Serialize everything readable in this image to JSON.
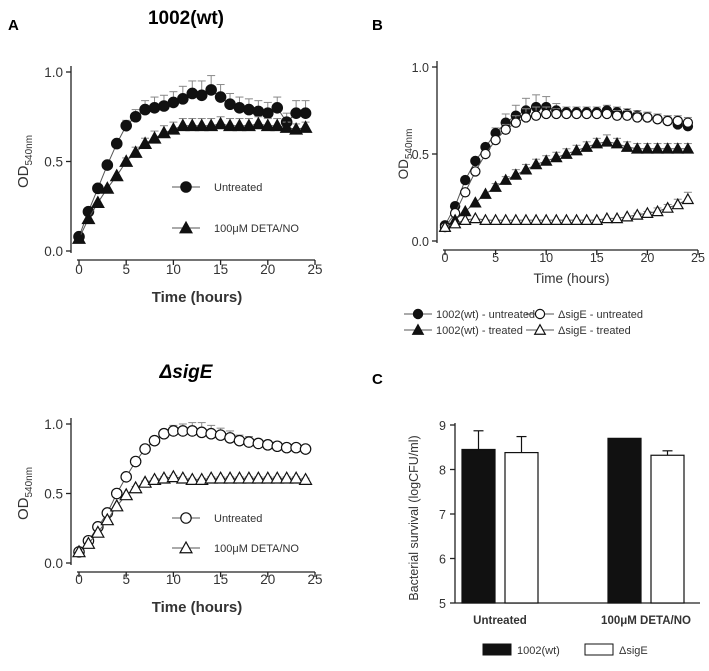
{
  "panels": {
    "A_label": "A",
    "B_label": "B",
    "C_label": "C",
    "A_top_title": "1002(wt)",
    "A_bottom_title": "ΔsigE"
  },
  "chart_data": [
    {
      "id": "A-top",
      "type": "line",
      "title": "1002(wt)",
      "xlabel": "Time (hours)",
      "ylabel": "OD540nm",
      "ylabel_main": "OD",
      "ylabel_sub": "540nm",
      "xlim": [
        0,
        25
      ],
      "ylim": [
        0,
        1.0
      ],
      "xticks": [
        0,
        5,
        10,
        15,
        20,
        25
      ],
      "xtick_labels": [
        "0",
        "5",
        "10",
        "15",
        "20",
        "25"
      ],
      "yticks": [
        0,
        0.5,
        1.0
      ],
      "ytick_labels": [
        "0.0",
        "0.5",
        "1.0"
      ],
      "legend": [
        "Untreated",
        "100μM DETA/NO"
      ],
      "series": [
        {
          "name": "Untreated",
          "marker": "circle",
          "filled": true,
          "x": [
            0,
            1,
            2,
            3,
            4,
            5,
            6,
            7,
            8,
            9,
            10,
            11,
            12,
            13,
            14,
            15,
            16,
            17,
            18,
            19,
            20,
            21,
            22,
            23,
            24
          ],
          "y": [
            0.08,
            0.22,
            0.35,
            0.48,
            0.6,
            0.7,
            0.75,
            0.79,
            0.8,
            0.81,
            0.83,
            0.85,
            0.88,
            0.87,
            0.9,
            0.86,
            0.82,
            0.8,
            0.79,
            0.78,
            0.77,
            0.8,
            0.72,
            0.77,
            0.77
          ],
          "err": [
            0,
            0,
            0,
            0,
            0,
            0.03,
            0.04,
            0.05,
            0.06,
            0.06,
            0.06,
            0.07,
            0.07,
            0.08,
            0.08,
            0.07,
            0.06,
            0.06,
            0.06,
            0.06,
            0.06,
            0.06,
            0.05,
            0.07,
            0.07
          ]
        },
        {
          "name": "100μM DETA/NO",
          "marker": "triangle",
          "filled": true,
          "x": [
            0,
            1,
            2,
            3,
            4,
            5,
            6,
            7,
            8,
            9,
            10,
            11,
            12,
            13,
            14,
            15,
            16,
            17,
            18,
            19,
            20,
            21,
            22,
            23,
            24
          ],
          "y": [
            0.07,
            0.18,
            0.27,
            0.35,
            0.42,
            0.5,
            0.55,
            0.6,
            0.63,
            0.66,
            0.68,
            0.7,
            0.7,
            0.7,
            0.7,
            0.71,
            0.7,
            0.7,
            0.7,
            0.71,
            0.7,
            0.7,
            0.69,
            0.68,
            0.69
          ],
          "err": [
            0,
            0,
            0,
            0,
            0,
            0.02,
            0.03,
            0.03,
            0.04,
            0.04,
            0.04,
            0.04,
            0.04,
            0.04,
            0.04,
            0.04,
            0.04,
            0.04,
            0.04,
            0.04,
            0.04,
            0.04,
            0.03,
            0.03,
            0.03
          ]
        }
      ]
    },
    {
      "id": "A-bottom",
      "type": "line",
      "title": "ΔsigE",
      "xlabel": "Time (hours)",
      "ylabel": "OD540nm",
      "ylabel_main": "OD",
      "ylabel_sub": "540nm",
      "xlim": [
        0,
        25
      ],
      "ylim": [
        0,
        1.0
      ],
      "xticks": [
        0,
        5,
        10,
        15,
        20,
        25
      ],
      "xtick_labels": [
        "0",
        "5",
        "10",
        "15",
        "20",
        "25"
      ],
      "yticks": [
        0,
        0.5,
        1.0
      ],
      "ytick_labels": [
        "0.0",
        "0.5",
        "1.0"
      ],
      "legend": [
        "Untreated",
        "100μM DETA/NO"
      ],
      "series": [
        {
          "name": "Untreated",
          "marker": "circle",
          "filled": false,
          "x": [
            0,
            1,
            2,
            3,
            4,
            5,
            6,
            7,
            8,
            9,
            10,
            11,
            12,
            13,
            14,
            15,
            16,
            17,
            18,
            19,
            20,
            21,
            22,
            23,
            24
          ],
          "y": [
            0.08,
            0.16,
            0.26,
            0.36,
            0.5,
            0.62,
            0.73,
            0.82,
            0.88,
            0.93,
            0.95,
            0.95,
            0.95,
            0.94,
            0.93,
            0.92,
            0.9,
            0.88,
            0.87,
            0.86,
            0.85,
            0.84,
            0.83,
            0.83,
            0.82
          ],
          "err": [
            0,
            0,
            0,
            0,
            0,
            0,
            0.02,
            0.02,
            0.03,
            0.03,
            0.04,
            0.05,
            0.06,
            0.07,
            0.06,
            0.05,
            0.05,
            0.04,
            0.04,
            0.03,
            0.03,
            0.03,
            0.02,
            0.02,
            0.02
          ]
        },
        {
          "name": "100μM DETA/NO",
          "marker": "triangle",
          "filled": false,
          "x": [
            0,
            1,
            2,
            3,
            4,
            5,
            6,
            7,
            8,
            9,
            10,
            11,
            12,
            13,
            14,
            15,
            16,
            17,
            18,
            19,
            20,
            21,
            22,
            23,
            24
          ],
          "y": [
            0.08,
            0.14,
            0.22,
            0.31,
            0.41,
            0.49,
            0.54,
            0.58,
            0.6,
            0.61,
            0.62,
            0.61,
            0.6,
            0.6,
            0.61,
            0.61,
            0.61,
            0.61,
            0.61,
            0.61,
            0.61,
            0.61,
            0.61,
            0.61,
            0.6
          ],
          "err": [
            0,
            0,
            0,
            0,
            0,
            0,
            0.01,
            0.01,
            0.01,
            0.01,
            0.01,
            0.01,
            0.01,
            0.01,
            0.01,
            0.01,
            0.01,
            0.01,
            0.01,
            0.01,
            0.01,
            0.01,
            0.01,
            0.01,
            0.01
          ]
        }
      ]
    },
    {
      "id": "B",
      "type": "line",
      "title": "",
      "xlabel": "Time (hours)",
      "ylabel": "OD540nm",
      "ylabel_main": "OD",
      "ylabel_sub": "540nm",
      "xlim": [
        0,
        25
      ],
      "ylim": [
        0,
        1.0
      ],
      "xticks": [
        0,
        5,
        10,
        15,
        20,
        25
      ],
      "xtick_labels": [
        "0",
        "5",
        "10",
        "15",
        "20",
        "25"
      ],
      "yticks": [
        0,
        0.5,
        1.0
      ],
      "ytick_labels": [
        "0.0",
        "0.5",
        "1.0"
      ],
      "legend": [
        "1002(wt) - untreated",
        "1002(wt) - treated",
        "ΔsigE - untreated",
        "ΔsigE - treated"
      ],
      "series": [
        {
          "name": "1002(wt) - untreated",
          "marker": "circle",
          "filled": true,
          "x": [
            0,
            1,
            2,
            3,
            4,
            5,
            6,
            7,
            8,
            9,
            10,
            11,
            12,
            13,
            14,
            15,
            16,
            17,
            18,
            19,
            20,
            21,
            22,
            23,
            24
          ],
          "y": [
            0.09,
            0.2,
            0.35,
            0.46,
            0.54,
            0.62,
            0.68,
            0.72,
            0.75,
            0.77,
            0.77,
            0.75,
            0.74,
            0.74,
            0.74,
            0.74,
            0.75,
            0.74,
            0.73,
            0.72,
            0.71,
            0.7,
            0.69,
            0.67,
            0.66
          ],
          "err": [
            0,
            0,
            0,
            0,
            0,
            0.03,
            0.05,
            0.06,
            0.07,
            0.07,
            0.06,
            0.04,
            0.03,
            0.03,
            0.03,
            0.03,
            0.03,
            0.03,
            0.03,
            0.03,
            0.03,
            0.03,
            0.03,
            0.03,
            0.03
          ]
        },
        {
          "name": "ΔsigE - untreated",
          "marker": "circle",
          "filled": false,
          "x": [
            0,
            1,
            2,
            3,
            4,
            5,
            6,
            7,
            8,
            9,
            10,
            11,
            12,
            13,
            14,
            15,
            16,
            17,
            18,
            19,
            20,
            21,
            22,
            23,
            24
          ],
          "y": [
            0.08,
            0.16,
            0.28,
            0.4,
            0.5,
            0.58,
            0.64,
            0.68,
            0.71,
            0.72,
            0.73,
            0.73,
            0.73,
            0.73,
            0.73,
            0.73,
            0.73,
            0.72,
            0.72,
            0.71,
            0.71,
            0.7,
            0.69,
            0.69,
            0.68
          ],
          "err": [
            0,
            0,
            0,
            0,
            0,
            0.02,
            0.03,
            0.04,
            0.05,
            0.05,
            0.04,
            0.03,
            0.02,
            0.02,
            0.02,
            0.02,
            0.02,
            0.03,
            0.03,
            0.03,
            0.03,
            0.03,
            0.03,
            0.03,
            0.03
          ]
        },
        {
          "name": "1002(wt) - treated",
          "marker": "triangle",
          "filled": true,
          "x": [
            0,
            1,
            2,
            3,
            4,
            5,
            6,
            7,
            8,
            9,
            10,
            11,
            12,
            13,
            14,
            15,
            16,
            17,
            18,
            19,
            20,
            21,
            22,
            23,
            24
          ],
          "y": [
            0.08,
            0.12,
            0.17,
            0.22,
            0.27,
            0.31,
            0.35,
            0.38,
            0.41,
            0.44,
            0.46,
            0.48,
            0.5,
            0.52,
            0.54,
            0.56,
            0.57,
            0.56,
            0.54,
            0.53,
            0.53,
            0.53,
            0.53,
            0.53,
            0.53
          ],
          "err": [
            0,
            0,
            0,
            0,
            0,
            0.02,
            0.02,
            0.03,
            0.03,
            0.03,
            0.03,
            0.03,
            0.03,
            0.03,
            0.03,
            0.03,
            0.04,
            0.03,
            0.03,
            0.03,
            0.03,
            0.03,
            0.03,
            0.03,
            0.03
          ]
        },
        {
          "name": "ΔsigE - treated",
          "marker": "triangle",
          "filled": false,
          "x": [
            0,
            1,
            2,
            3,
            4,
            5,
            6,
            7,
            8,
            9,
            10,
            11,
            12,
            13,
            14,
            15,
            16,
            17,
            18,
            19,
            20,
            21,
            22,
            23,
            24
          ],
          "y": [
            0.08,
            0.1,
            0.12,
            0.13,
            0.12,
            0.12,
            0.12,
            0.12,
            0.12,
            0.12,
            0.12,
            0.12,
            0.12,
            0.12,
            0.12,
            0.12,
            0.13,
            0.13,
            0.14,
            0.15,
            0.16,
            0.17,
            0.19,
            0.21,
            0.24
          ],
          "err": [
            0,
            0,
            0,
            0,
            0,
            0,
            0,
            0,
            0,
            0,
            0,
            0,
            0,
            0,
            0,
            0,
            0,
            0,
            0,
            0.01,
            0.01,
            0.02,
            0.02,
            0.03,
            0.04
          ]
        }
      ]
    },
    {
      "id": "C",
      "type": "bar",
      "title": "",
      "xlabel": "",
      "ylabel": "Bacterial survival (logCFU/ml)",
      "ylim": [
        5,
        9
      ],
      "yticks": [
        5,
        6,
        7,
        8,
        9
      ],
      "ytick_labels": [
        "5",
        "6",
        "7",
        "8",
        "9"
      ],
      "categories": [
        "Untreated",
        "100μM DETA/NO"
      ],
      "legend": [
        "1002(wt)",
        "ΔsigE"
      ],
      "series": [
        {
          "name": "1002(wt)",
          "fill": "#111111",
          "values": [
            8.45,
            8.7
          ],
          "err": [
            0.42,
            0.0
          ]
        },
        {
          "name": "ΔsigE",
          "fill": "#ffffff",
          "values": [
            8.38,
            8.32
          ],
          "err": [
            0.36,
            0.1
          ]
        }
      ]
    }
  ]
}
